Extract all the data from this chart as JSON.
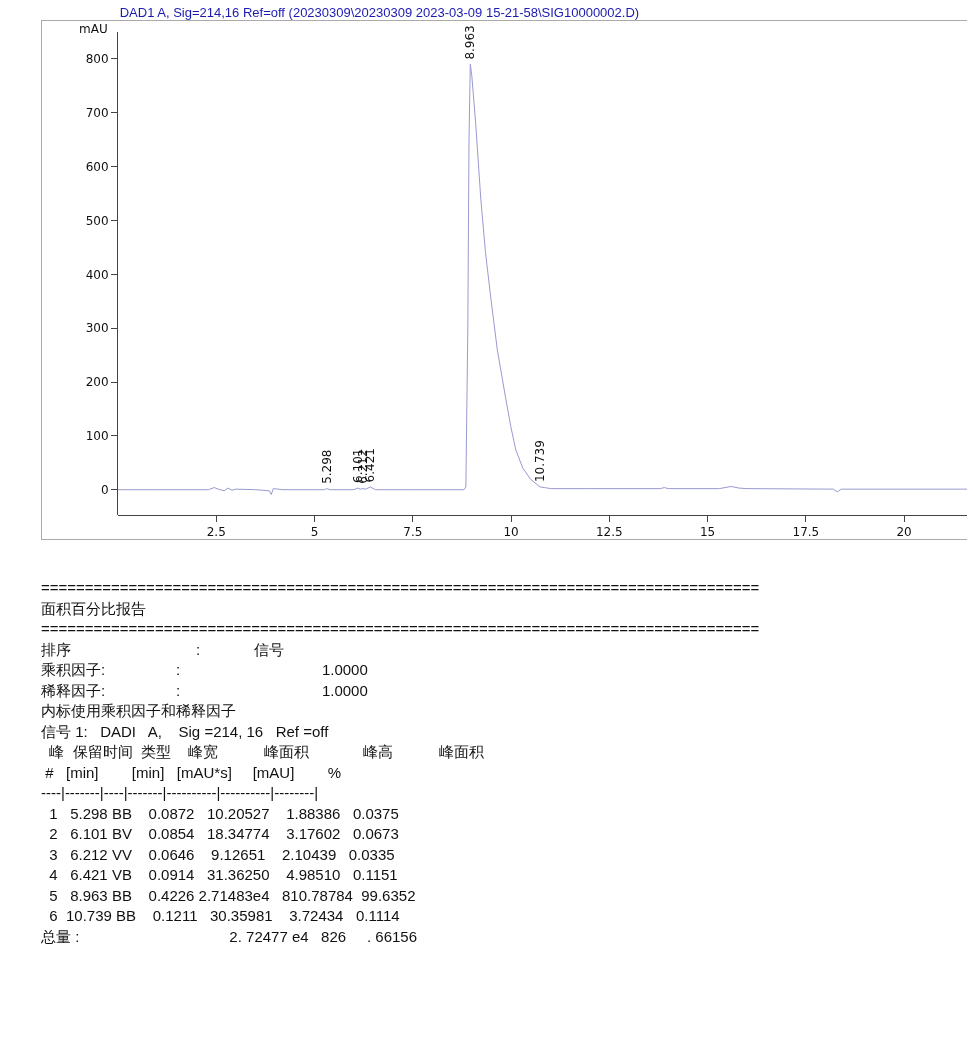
{
  "chart_data": {
    "type": "line",
    "title": "DAD1 A, Sig=214,16 Ref=off (20230309\\20230309 2023-03-09 15-21-58\\SIG10000002.D)",
    "ylabel": "mAU",
    "xlim": [
      0,
      21.6
    ],
    "xticks": [
      2.5,
      5,
      7.5,
      10,
      12.5,
      15,
      17.5,
      20
    ],
    "ylim": [
      -47,
      850
    ],
    "yticks": [
      0,
      100,
      200,
      300,
      400,
      500,
      600,
      700,
      800
    ],
    "grid": false,
    "marker": "none",
    "line_style": "solid",
    "series": [
      {
        "color": "#9a9ad0",
        "x": [
          0,
          1,
          2.3,
          2.45,
          2.55,
          2.7,
          2.8,
          2.9,
          3.0,
          3.5,
          3.85,
          3.9,
          3.95,
          4.2,
          5.0,
          5.25,
          5.3,
          5.4,
          6.0,
          6.1,
          6.17,
          6.21,
          6.3,
          6.42,
          6.55,
          7.5,
          8.8,
          8.85,
          8.9,
          8.93,
          8.963,
          9.0,
          9.1,
          9.23,
          9.35,
          9.49,
          9.65,
          9.87,
          10.0,
          10.12,
          10.3,
          10.5,
          10.739,
          10.85,
          11,
          12,
          13.8,
          13.9,
          14.0,
          15.3,
          15.6,
          15.8,
          16,
          18.2,
          18.3,
          18.4,
          21.6
        ],
        "values": [
          0,
          0,
          0,
          4,
          1,
          -2,
          3,
          -1,
          1,
          0,
          -2,
          -9,
          2,
          0,
          0,
          0,
          2,
          0,
          0,
          3,
          1,
          2,
          1,
          5,
          0,
          0,
          0,
          5,
          300,
          650,
          790,
          770,
          680,
          540,
          440,
          353,
          260,
          167,
          115,
          74,
          40,
          19,
          5,
          4,
          2,
          2,
          2,
          4,
          2,
          2,
          6,
          3,
          2,
          1,
          -4,
          1,
          1
        ]
      }
    ],
    "annotations": [
      {
        "text": "5.298",
        "x": 5.298,
        "y": 2
      },
      {
        "text": "6.101",
        "x": 6.101,
        "y": 3
      },
      {
        "text": "6.212",
        "x": 6.212,
        "y": 2
      },
      {
        "text": "6.421",
        "x": 6.421,
        "y": 5
      },
      {
        "text": "8.963",
        "x": 8.963,
        "y": 790
      },
      {
        "text": "10.739",
        "x": 10.739,
        "y": 5
      },
      "==================================================================================",
      "面积百分比报告",
      "==================================================================================",
      "排序                              :             信号",
      "乘积因子:                 :                                  1.0000",
      "稀释因子:                 :                                  1.0000",
      "内标使用乘积因子和稀释因子",
      "信号 1:   DADI   A,    Sig =214, 16   Ref =off",
      "  峰  保留时间  类型    峰宽           峰面积             峰高           峰面积",
      " #   [min]        [min]   [mAU*s]     [mAU]        %",
      "----|-------|----|-------|----------|----------|--------|",
      "  1   5.298 BB    0.0872   10.20527    1.88386   0.0375",
      "  2   6.101 BV    0.0854   18.34774    3.17602   0.0673",
      "  3   6.212 VV    0.0646    9.12651    2.10439   0.0335",
      "  4   6.421 VB    0.0914   31.36250    4.98510   0.1151",
      "  5   8.963 BB    0.4226 2.71483e4   810.78784  99.6352",
      "  6  10.739 BB    0.1211   30.35981    3.72434   0.1114",
      "总量 :                                    2. 72477 e4   826     . 66156"
    ]
  }
}
